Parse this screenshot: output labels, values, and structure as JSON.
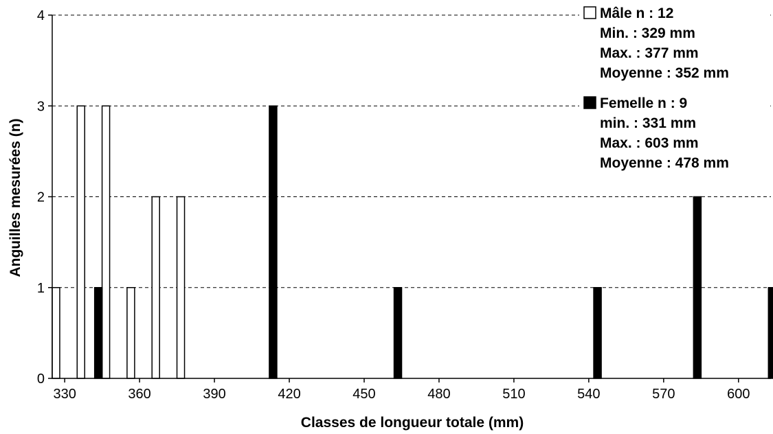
{
  "chart_data": {
    "type": "bar",
    "xlabel": "Classes de longueur totale (mm)",
    "ylabel": "Anguilles mesurées (n)",
    "xlim": [
      325,
      613
    ],
    "ylim": [
      0,
      4
    ],
    "xticks": [
      330,
      360,
      390,
      420,
      450,
      480,
      510,
      540,
      570,
      600
    ],
    "yticks": [
      0,
      1,
      2,
      3,
      4
    ],
    "grid": "horizontal dashed",
    "legend": "top-right",
    "series": [
      {
        "name": "Mâle n : 12",
        "fill": "#ffffff",
        "stroke": "#000000",
        "details": [
          "Min. : 329 mm",
          "Max. : 377 mm",
          "Moyenne : 352 mm"
        ],
        "points": [
          {
            "x": 330,
            "y": 1
          },
          {
            "x": 340,
            "y": 3
          },
          {
            "x": 350,
            "y": 3
          },
          {
            "x": 360,
            "y": 1
          },
          {
            "x": 370,
            "y": 2
          },
          {
            "x": 380,
            "y": 2
          }
        ]
      },
      {
        "name": "Femelle n : 9",
        "fill": "#000000",
        "stroke": "#000000",
        "details": [
          "min. : 331 mm",
          "Max. : 603 mm",
          "Moyenne : 478 mm"
        ],
        "points": [
          {
            "x": 340,
            "y": 1
          },
          {
            "x": 410,
            "y": 3
          },
          {
            "x": 460,
            "y": 1
          },
          {
            "x": 540,
            "y": 1
          },
          {
            "x": 580,
            "y": 2
          },
          {
            "x": 610,
            "y": 1
          }
        ]
      }
    ]
  }
}
